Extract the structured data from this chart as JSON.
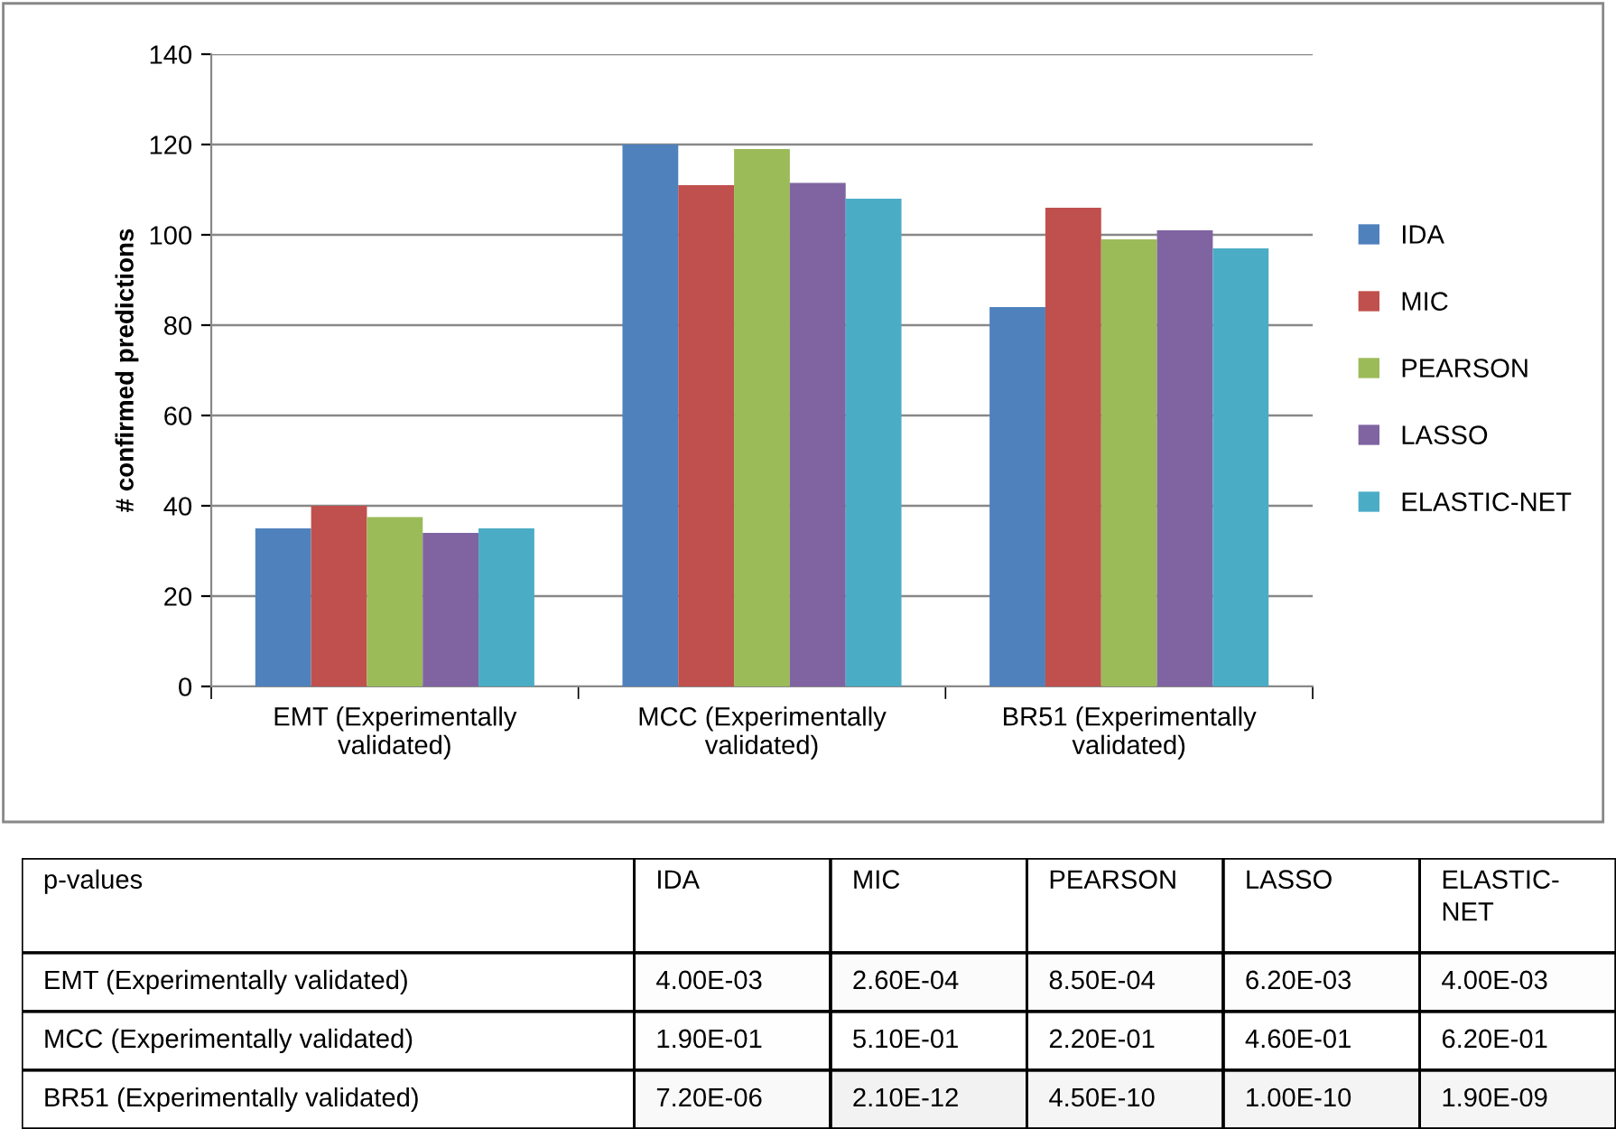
{
  "chart_data": [
    {
      "type": "bar",
      "ylabel": "# confirmed predictions",
      "categories": [
        "EMT (Experimentally\nvalidated)",
        "MCC (Experimentally\nvalidated)",
        "BR51 (Experimentally\nvalidated)"
      ],
      "series": [
        {
          "name": "IDA",
          "color": "#4f81bd",
          "values": [
            35,
            120,
            84
          ]
        },
        {
          "name": "MIC",
          "color": "#c0504d",
          "values": [
            40,
            111,
            106
          ]
        },
        {
          "name": "PEARSON",
          "color": "#9bbb59",
          "values": [
            37.5,
            119,
            99
          ]
        },
        {
          "name": "LASSO",
          "color": "#8064a2",
          "values": [
            34,
            111.5,
            101
          ]
        },
        {
          "name": "ELASTIC-NET",
          "color": "#4bacc6",
          "values": [
            35,
            108,
            97
          ]
        }
      ],
      "ylim": [
        0,
        140
      ],
      "yticks": [
        0,
        20,
        40,
        60,
        80,
        100,
        120,
        140
      ],
      "grid": "y",
      "legend": "right"
    },
    {
      "type": "heatmap",
      "title": "p-values",
      "categories": [
        "IDA",
        "MIC",
        "PEARSON",
        "LASSO",
        "ELASTIC-\nNET"
      ],
      "y_categories": [
        "EMT (Experimentally validated)",
        "MCC (Experimentally validated)",
        "BR51 (Experimentally validated)"
      ],
      "cells": [
        [
          0.004,
          0.00026,
          0.00085,
          0.0062,
          0.004
        ],
        [
          0.19,
          0.51,
          0.22,
          0.46,
          0.62
        ],
        [
          7.2e-06,
          2.1e-12,
          4.5e-10,
          1e-10,
          1.9e-09
        ]
      ],
      "cell_labels": [
        [
          "4.00E-03",
          "2.60E-04",
          "8.50E-04",
          "6.20E-03",
          "4.00E-03"
        ],
        [
          "1.90E-01",
          "5.10E-01",
          "2.20E-01",
          "4.60E-01",
          "6.20E-01"
        ],
        [
          "7.20E-06",
          "2.10E-12",
          "4.50E-10",
          "1.00E-10",
          "1.90E-09"
        ]
      ]
    }
  ]
}
